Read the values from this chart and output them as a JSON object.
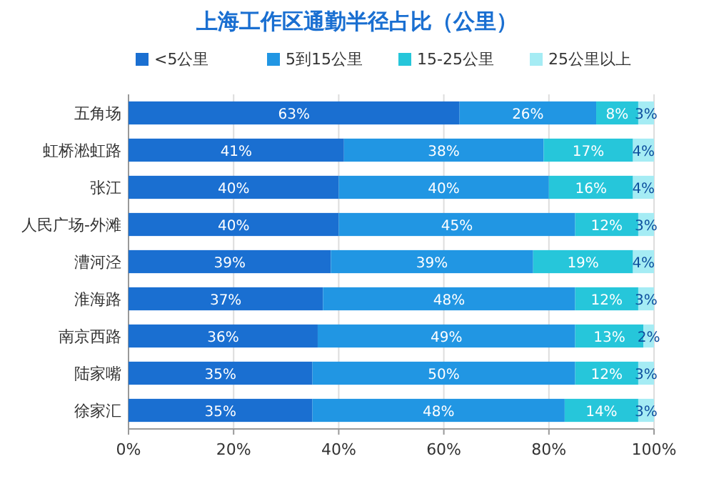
{
  "chart_data": {
    "type": "bar",
    "orientation": "horizontal",
    "stacked": true,
    "title": "上海工作区通勤半径占比（公里）",
    "categories": [
      "五角场",
      "虹桥淞虹路",
      "张江",
      "人民广场-外滩",
      "漕河泾",
      "淮海路",
      "南京西路",
      "陆家嘴",
      "徐家汇"
    ],
    "series": [
      {
        "name": "<5公里",
        "color": "#1a6fd1",
        "values": [
          63,
          41,
          40,
          40,
          38.5,
          37,
          36,
          35,
          35
        ],
        "value_labels": [
          "63%",
          "41%",
          "40%",
          "40%",
          "39%",
          "37%",
          "36%",
          "35%",
          "35%"
        ]
      },
      {
        "name": "5到15公里",
        "color": "#2196e3",
        "values": [
          26,
          38,
          40,
          45,
          38.5,
          48,
          49,
          50,
          48
        ],
        "value_labels": [
          "26%",
          "38%",
          "40%",
          "45%",
          "39%",
          "48%",
          "49%",
          "50%",
          "48%"
        ]
      },
      {
        "name": "15-25公里",
        "color": "#26c6da",
        "values": [
          8,
          17,
          16,
          12,
          19,
          12,
          13,
          12,
          14
        ],
        "value_labels": [
          "8%",
          "17%",
          "16%",
          "12%",
          "19%",
          "12%",
          "13%",
          "12%",
          "14%"
        ]
      },
      {
        "name": "25公里以上",
        "color": "#a5ecf4",
        "values": [
          3,
          4,
          4,
          3,
          4,
          3,
          2,
          3,
          3
        ],
        "value_labels": [
          "3%",
          "4%",
          "4%",
          "3%",
          "4%",
          "3%",
          "2%",
          "3%",
          "3%"
        ]
      }
    ],
    "xlim": [
      0,
      100
    ],
    "xticks": [
      {
        "value": 0,
        "label": "0%"
      },
      {
        "value": 20,
        "label": "20%"
      },
      {
        "value": 40,
        "label": "40%"
      },
      {
        "value": 60,
        "label": "60%"
      },
      {
        "value": 80,
        "label": "80%"
      },
      {
        "value": 100,
        "label": "100%"
      }
    ],
    "grid": "x",
    "legend": "top"
  }
}
